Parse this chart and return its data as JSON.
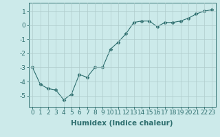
{
  "x": [
    0,
    1,
    2,
    3,
    4,
    5,
    6,
    7,
    8,
    9,
    10,
    11,
    12,
    13,
    14,
    15,
    16,
    17,
    18,
    19,
    20,
    21,
    22,
    23
  ],
  "y": [
    -3.0,
    -4.2,
    -4.5,
    -4.6,
    -5.3,
    -4.9,
    -3.5,
    -3.7,
    -3.0,
    -3.0,
    -1.7,
    -1.2,
    -0.6,
    0.2,
    0.3,
    0.3,
    -0.1,
    0.2,
    0.2,
    0.3,
    0.5,
    0.8,
    1.0,
    1.1
  ],
  "xlabel": "Humidex (Indice chaleur)",
  "ylim": [
    -5.8,
    1.6
  ],
  "xlim": [
    -0.5,
    23.5
  ],
  "yticks": [
    -5,
    -4,
    -3,
    -2,
    -1,
    0,
    1
  ],
  "xticks": [
    0,
    1,
    2,
    3,
    4,
    5,
    6,
    7,
    8,
    9,
    10,
    11,
    12,
    13,
    14,
    15,
    16,
    17,
    18,
    19,
    20,
    21,
    22,
    23
  ],
  "line_color": "#2d6e6e",
  "marker": "D",
  "marker_size": 2.5,
  "bg_color": "#cceaea",
  "grid_color": "#b0cccc",
  "tick_color": "#2d6e6e",
  "label_color": "#2d6e6e",
  "font_size": 6.5,
  "xlabel_fontsize": 7.5
}
